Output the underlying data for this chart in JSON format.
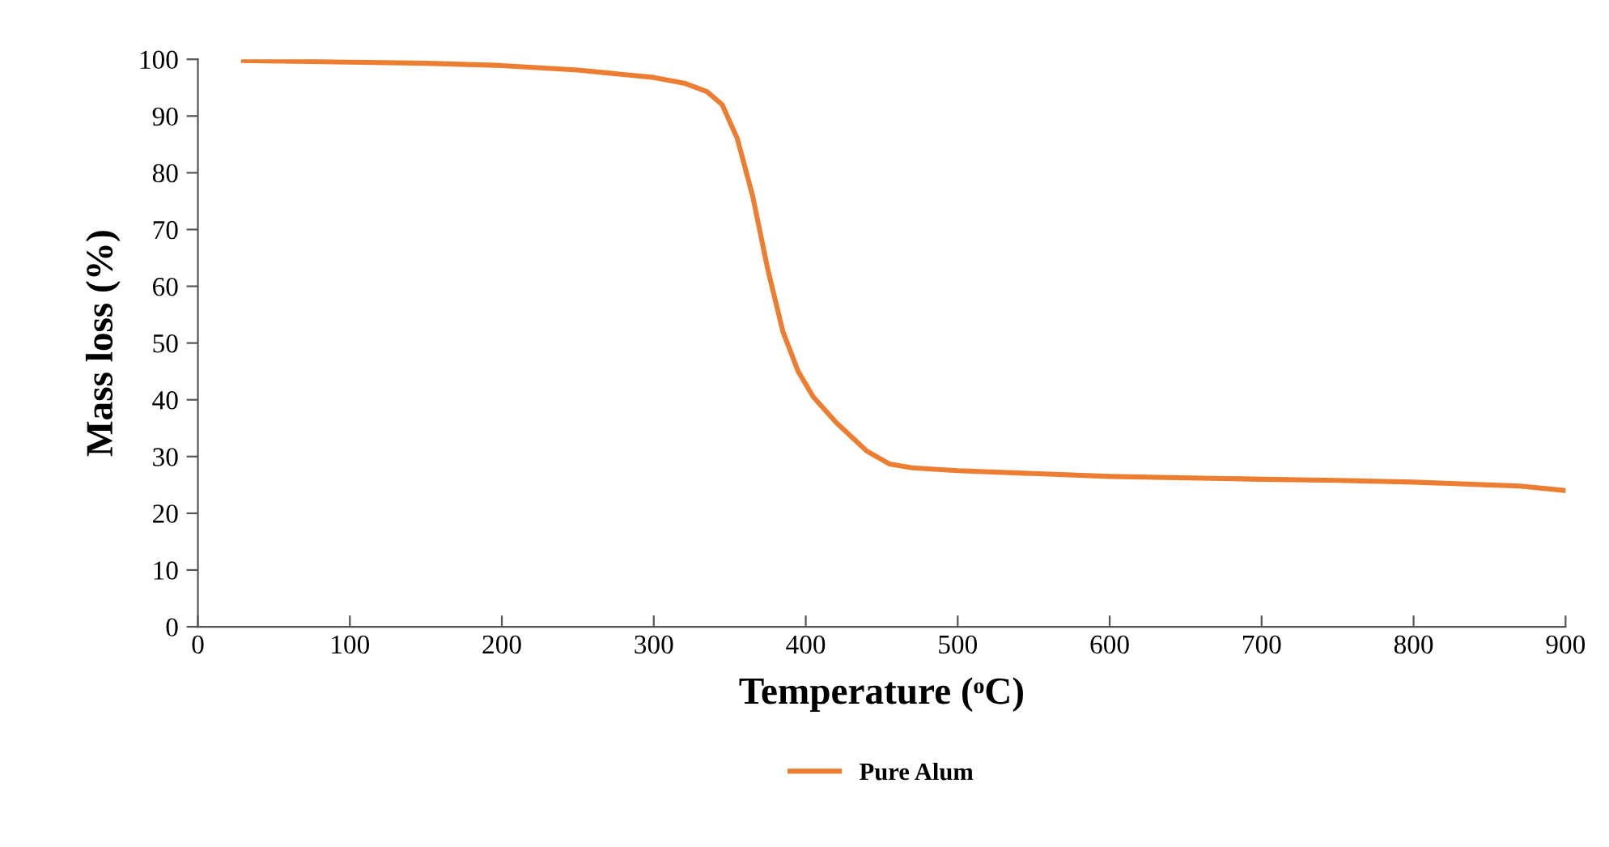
{
  "chart_data": {
    "type": "line",
    "xlabel": "Temperature (ᵒC)",
    "ylabel": "Mass loss (%)",
    "xlim": [
      0,
      900
    ],
    "xticks": [
      0,
      100,
      200,
      300,
      400,
      500,
      600,
      700,
      800,
      900
    ],
    "ylim": [
      0,
      100
    ],
    "yticks": [
      0,
      10,
      20,
      30,
      40,
      50,
      60,
      70,
      80,
      90,
      100
    ],
    "grid": false,
    "legend": "bottom",
    "marker": "none",
    "line_style": "solid",
    "series": [
      {
        "name": "Pure Alum",
        "color": "#ed7d31",
        "x": [
          30,
          100,
          150,
          200,
          250,
          300,
          320,
          335,
          345,
          355,
          365,
          375,
          385,
          395,
          405,
          420,
          440,
          455,
          470,
          500,
          600,
          700,
          750,
          800,
          850,
          870,
          900
        ],
        "values": [
          99.8,
          99.5,
          99.3,
          98.9,
          98.1,
          96.8,
          95.8,
          94.3,
          92,
          86,
          76,
          63,
          52,
          45,
          40.5,
          36,
          31,
          28.7,
          28,
          27.5,
          26.5,
          26,
          25.8,
          25.5,
          25,
          24.8,
          24
        ]
      }
    ]
  }
}
